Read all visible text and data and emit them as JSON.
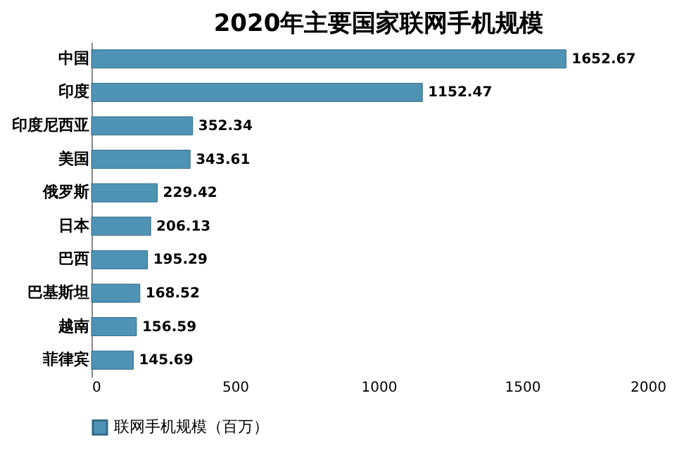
{
  "chart_data": {
    "type": "bar",
    "orientation": "horizontal",
    "title": "2020年主要国家联网手机规模",
    "categories": [
      "中国",
      "印度",
      "印度尼西亚",
      "美国",
      "俄罗斯",
      "日本",
      "巴西",
      "巴基斯坦",
      "越南",
      "菲律宾"
    ],
    "series": [
      {
        "name": "联网手机规模（百万）",
        "color": "#4f93b4",
        "values": [
          1652.67,
          1152.47,
          352.34,
          343.61,
          229.42,
          206.13,
          195.29,
          168.52,
          156.59,
          145.69
        ]
      }
    ],
    "xlim": [
      0,
      2000
    ],
    "xticks": [
      0,
      500,
      1000,
      1500,
      2000
    ],
    "data_labels": true,
    "legend": "bottom",
    "grid": false
  }
}
